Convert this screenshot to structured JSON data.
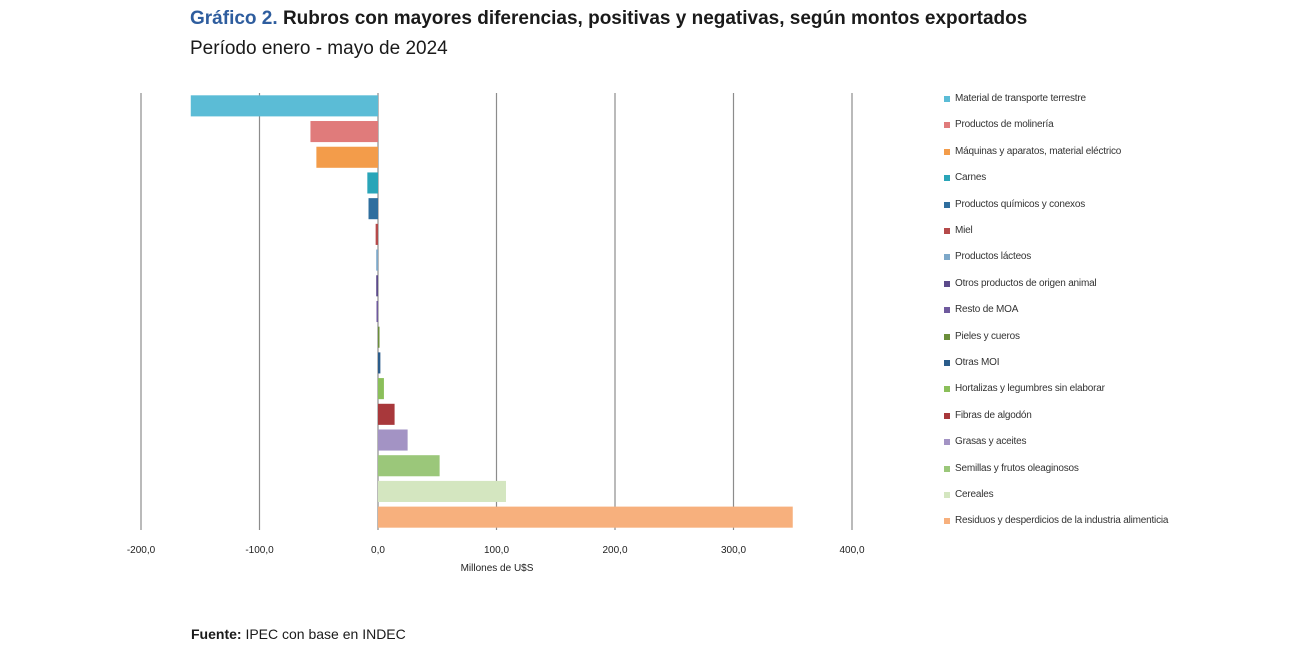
{
  "header": {
    "title_prefix": "Gráfico 2.",
    "title_main": "Rubros con mayores diferencias, positivas y negativas, según montos exportados",
    "subtitle": "Período enero - mayo de 2024"
  },
  "footer": {
    "source_label": "Fuente:",
    "source_text": "IPEC con base en INDEC"
  },
  "chart_data": {
    "type": "bar",
    "orientation": "horizontal",
    "xlabel": "Millones  de U$S",
    "xlim": [
      -200,
      400
    ],
    "xticks": [
      "-200,0",
      "-100,0",
      "0,0",
      "100,0",
      "200,0",
      "300,0",
      "400,0"
    ],
    "grid": true,
    "legend_position": "right",
    "series": [
      {
        "name": "Material de transporte terrestre",
        "value": -158,
        "color": "#5bbcd6"
      },
      {
        "name": "Productos de molinería",
        "value": -57,
        "color": "#e07b7b"
      },
      {
        "name": "Máquinas y aparatos, material eléctrico",
        "value": -52,
        "color": "#f39c4a"
      },
      {
        "name": "Carnes",
        "value": -9,
        "color": "#2aa5b8"
      },
      {
        "name": "Productos químicos y conexos",
        "value": -8,
        "color": "#2f6e9e"
      },
      {
        "name": "Miel",
        "value": -2,
        "color": "#b54a4a"
      },
      {
        "name": "Productos lácteos",
        "value": -1.5,
        "color": "#7da8c9"
      },
      {
        "name": "Otros productos de origen animal",
        "value": -1.5,
        "color": "#5b4a8a"
      },
      {
        "name": "Resto de MOA",
        "value": -0.5,
        "color": "#6f5a9e"
      },
      {
        "name": "Pieles y cueros",
        "value": 0.5,
        "color": "#6b8e3a"
      },
      {
        "name": "Otras MOI",
        "value": 2,
        "color": "#2b5c8a"
      },
      {
        "name": "Hortalizas y legumbres sin elaborar",
        "value": 5,
        "color": "#8bbf5a"
      },
      {
        "name": "Fibras de algodón",
        "value": 14,
        "color": "#a8383b"
      },
      {
        "name": "Grasas y aceites",
        "value": 25,
        "color": "#a393c4"
      },
      {
        "name": "Semillas y frutos oleaginosos",
        "value": 52,
        "color": "#9bc77a"
      },
      {
        "name": "Cereales",
        "value": 108,
        "color": "#d4e6c0"
      },
      {
        "name": "Residuos y desperdicios de la industria alimenticia",
        "value": 350,
        "color": "#f7b07d"
      }
    ]
  }
}
